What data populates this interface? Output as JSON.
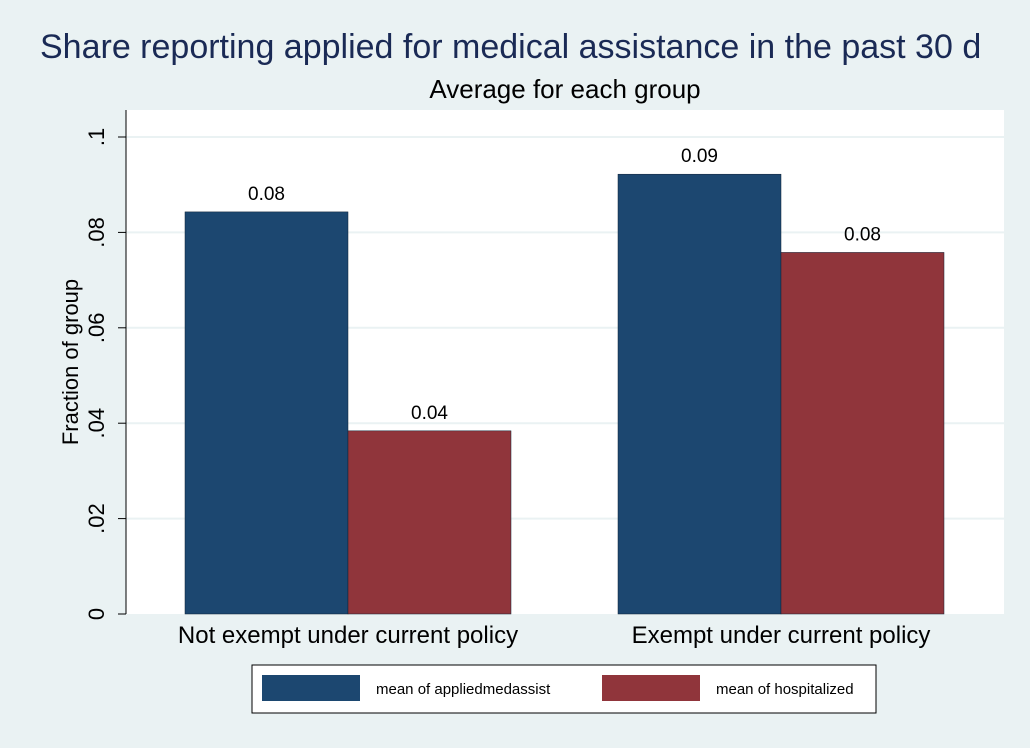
{
  "chart_data": {
    "type": "bar",
    "title": "Share reporting applied for medical assistance in the past 30 d",
    "subtitle": "Average for each group",
    "ylabel": "Fraction of group",
    "xlabel": "",
    "categories": [
      "Not exempt under current policy",
      "Exempt under current policy"
    ],
    "series": [
      {
        "name": "mean of appliedmedassist",
        "values": [
          0.0843,
          0.0922
        ],
        "labels": [
          "0.08",
          "0.09"
        ],
        "color": "#1c4770"
      },
      {
        "name": "mean of hospitalized",
        "values": [
          0.0384,
          0.0758
        ],
        "labels": [
          "0.04",
          "0.08"
        ],
        "color": "#90353b"
      }
    ],
    "ylim": [
      0,
      0.1
    ],
    "yticks": [
      0,
      0.02,
      0.04,
      0.06,
      0.08,
      0.1
    ],
    "ytick_labels": [
      "0",
      ".02",
      ".04",
      ".06",
      ".08",
      ".1"
    ],
    "grid": true,
    "legend_position": "bottom"
  }
}
